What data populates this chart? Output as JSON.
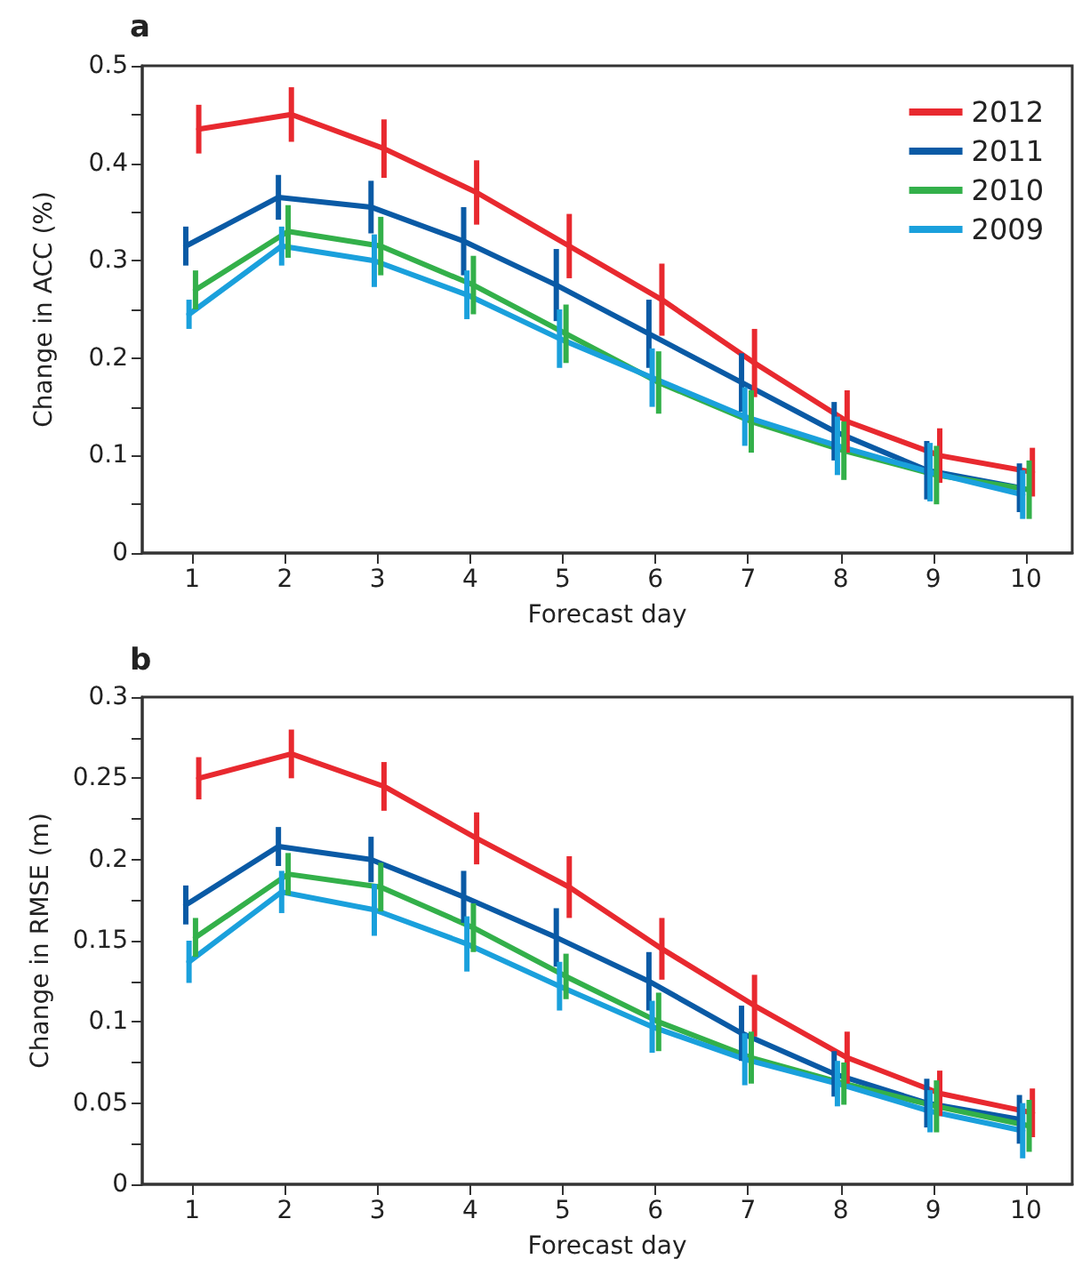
{
  "chart_data": [
    {
      "type": "line",
      "title": "a",
      "xlabel": "Forecast day",
      "ylabel": "Change in ACC (%)",
      "series": [
        {
          "name": "2012",
          "color": "#e8292f",
          "x": [
            1.07,
            2.07,
            3.07,
            4.07,
            5.07,
            6.07,
            7.07,
            8.07,
            9.07,
            10.07
          ],
          "values": [
            0.435,
            0.45,
            0.415,
            0.37,
            0.315,
            0.26,
            0.195,
            0.135,
            0.1,
            0.083
          ],
          "errors": [
            0.025,
            0.028,
            0.03,
            0.033,
            0.033,
            0.037,
            0.035,
            0.032,
            0.028,
            0.025
          ]
        },
        {
          "name": "2011",
          "color": "#0a5aa5",
          "x": [
            0.93,
            1.93,
            2.93,
            3.93,
            4.93,
            5.93,
            6.93,
            7.93,
            8.93,
            9.93
          ],
          "values": [
            0.315,
            0.365,
            0.355,
            0.32,
            0.275,
            0.225,
            0.175,
            0.125,
            0.085,
            0.067
          ],
          "errors": [
            0.02,
            0.023,
            0.027,
            0.035,
            0.037,
            0.035,
            0.03,
            0.03,
            0.03,
            0.025
          ]
        },
        {
          "name": "2010",
          "color": "#33b04a",
          "x": [
            1.035,
            2.035,
            3.035,
            4.035,
            5.035,
            6.035,
            7.035,
            8.035,
            9.035,
            10.035
          ],
          "values": [
            0.27,
            0.33,
            0.315,
            0.275,
            0.225,
            0.175,
            0.135,
            0.105,
            0.08,
            0.065
          ],
          "errors": [
            0.02,
            0.027,
            0.03,
            0.03,
            0.03,
            0.032,
            0.032,
            0.03,
            0.03,
            0.03
          ]
        },
        {
          "name": "2009",
          "color": "#1aa0dc",
          "x": [
            0.965,
            1.965,
            2.965,
            3.965,
            4.965,
            5.965,
            6.965,
            7.965,
            8.965,
            9.965
          ],
          "values": [
            0.245,
            0.315,
            0.3,
            0.265,
            0.22,
            0.18,
            0.14,
            0.11,
            0.083,
            0.06
          ],
          "errors": [
            0.015,
            0.02,
            0.027,
            0.025,
            0.03,
            0.03,
            0.03,
            0.03,
            0.03,
            0.025
          ]
        }
      ],
      "xlim": [
        0.46,
        10.5
      ],
      "xticks": [
        1,
        2,
        3,
        4,
        5,
        6,
        7,
        8,
        9,
        10
      ],
      "ylim": [
        0,
        0.5
      ],
      "yticks": [
        0,
        {
          "value": 0.05,
          "label": null
        },
        0.1,
        {
          "value": 0.15,
          "label": null
        },
        0.2,
        {
          "value": 0.25,
          "label": null
        },
        0.3,
        {
          "value": 0.35,
          "label": null
        },
        0.4,
        {
          "value": 0.45,
          "label": null
        },
        0.5
      ],
      "grid": false,
      "legend": "top right",
      "marker": "none",
      "line_style": "solid"
    },
    {
      "type": "line",
      "title": "b",
      "xlabel": "Forecast day",
      "ylabel": "Change in RMSE (m)",
      "series": [
        {
          "color": "#e8292f",
          "x": [
            1.07,
            2.07,
            3.07,
            4.07,
            5.07,
            6.07,
            7.07,
            8.07,
            9.07,
            10.07
          ],
          "values": [
            0.25,
            0.265,
            0.245,
            0.213,
            0.183,
            0.145,
            0.11,
            0.078,
            0.056,
            0.044
          ],
          "errors": [
            0.013,
            0.015,
            0.015,
            0.016,
            0.019,
            0.019,
            0.019,
            0.016,
            0.014,
            0.015
          ]
        },
        {
          "color": "#0a5aa5",
          "x": [
            0.93,
            1.93,
            2.93,
            3.93,
            4.93,
            5.93,
            6.93,
            7.93,
            8.93,
            9.93
          ],
          "values": [
            0.172,
            0.208,
            0.2,
            0.177,
            0.152,
            0.125,
            0.093,
            0.068,
            0.05,
            0.04
          ],
          "errors": [
            0.012,
            0.012,
            0.014,
            0.016,
            0.018,
            0.018,
            0.017,
            0.014,
            0.015,
            0.015
          ]
        },
        {
          "color": "#33b04a",
          "x": [
            1.035,
            2.035,
            3.035,
            4.035,
            5.035,
            6.035,
            7.035,
            8.035,
            9.035,
            10.035
          ],
          "values": [
            0.152,
            0.191,
            0.183,
            0.158,
            0.128,
            0.1,
            0.078,
            0.062,
            0.048,
            0.036
          ],
          "errors": [
            0.012,
            0.013,
            0.015,
            0.015,
            0.014,
            0.018,
            0.016,
            0.013,
            0.016,
            0.016
          ]
        },
        {
          "color": "#1aa0dc",
          "x": [
            0.965,
            1.965,
            2.965,
            3.965,
            4.965,
            5.965,
            6.965,
            7.965,
            8.965,
            9.965
          ],
          "values": [
            0.137,
            0.18,
            0.169,
            0.148,
            0.122,
            0.097,
            0.077,
            0.062,
            0.045,
            0.033
          ],
          "errors": [
            0.013,
            0.013,
            0.016,
            0.017,
            0.015,
            0.016,
            0.016,
            0.014,
            0.013,
            0.017
          ]
        }
      ],
      "xlim": [
        0.46,
        10.5
      ],
      "xticks": [
        1,
        2,
        3,
        4,
        5,
        6,
        7,
        8,
        9,
        10
      ],
      "ylim": [
        0,
        0.3
      ],
      "yticks": [
        0,
        {
          "value": 0.025,
          "label": null
        },
        0.05,
        {
          "value": 0.075,
          "label": null
        },
        0.1,
        {
          "value": 0.125,
          "label": null
        },
        0.15,
        {
          "value": 0.175,
          "label": null
        },
        0.2,
        {
          "value": 0.225,
          "label": null
        },
        0.25,
        {
          "value": 0.275,
          "label": null
        },
        0.3
      ],
      "grid": false,
      "legend": false,
      "marker": "none",
      "line_style": "solid"
    }
  ]
}
